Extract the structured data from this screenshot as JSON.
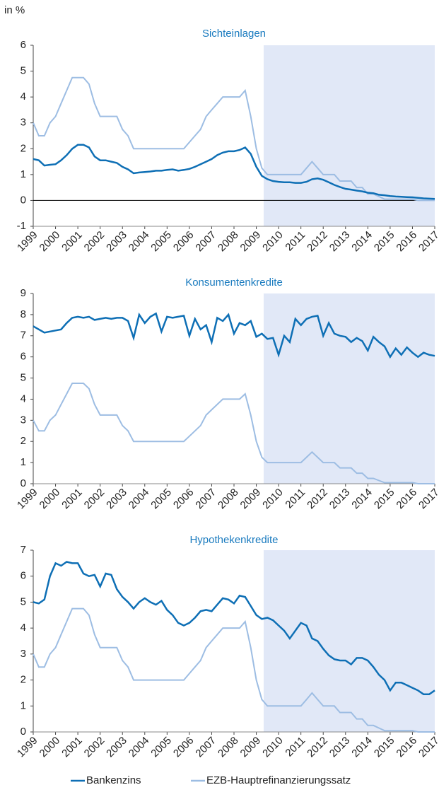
{
  "unit_label": "in %",
  "legend": [
    {
      "name": "Bankenzins",
      "color": "#0e6fb5"
    },
    {
      "name": "EZB-Hauptrefinanzierungssatz",
      "color": "#9dbde3"
    }
  ],
  "x": [
    1999,
    1999.25,
    1999.5,
    1999.75,
    2000,
    2000.25,
    2000.5,
    2000.75,
    2001,
    2001.25,
    2001.5,
    2001.75,
    2002,
    2002.25,
    2002.5,
    2002.75,
    2003,
    2003.25,
    2003.5,
    2003.75,
    2004,
    2004.25,
    2004.5,
    2004.75,
    2005,
    2005.25,
    2005.5,
    2005.75,
    2006,
    2006.25,
    2006.5,
    2006.75,
    2007,
    2007.25,
    2007.5,
    2007.75,
    2008,
    2008.25,
    2008.5,
    2008.75,
    2009,
    2009.25,
    2009.5,
    2009.75,
    2010,
    2010.25,
    2010.5,
    2010.75,
    2011,
    2011.25,
    2011.5,
    2011.75,
    2012,
    2012.25,
    2012.5,
    2012.75,
    2013,
    2013.25,
    2013.5,
    2013.75,
    2014,
    2014.25,
    2014.5,
    2014.75,
    2015,
    2015.25,
    2015.5,
    2015.75,
    2016,
    2016.25,
    2016.5,
    2016.75,
    2017
  ],
  "xlim": [
    1999,
    2017
  ],
  "xticks": [
    1999,
    2000,
    2001,
    2002,
    2003,
    2004,
    2005,
    2006,
    2007,
    2008,
    2009,
    2010,
    2011,
    2012,
    2013,
    2014,
    2015,
    2016,
    2017
  ],
  "chart_data": [
    {
      "type": "line",
      "title": "Sichteinlagen",
      "ylim": [
        -1,
        6
      ],
      "yticks": [
        -1,
        0,
        1,
        2,
        3,
        4,
        5,
        6
      ],
      "zero_line": true,
      "shade_from": 2009.33,
      "series": [
        {
          "values": [
            1.6,
            1.55,
            1.35,
            1.38,
            1.4,
            1.55,
            1.75,
            2.0,
            2.15,
            2.15,
            2.05,
            1.7,
            1.55,
            1.55,
            1.5,
            1.45,
            1.3,
            1.2,
            1.05,
            1.08,
            1.1,
            1.12,
            1.15,
            1.15,
            1.18,
            1.2,
            1.15,
            1.18,
            1.22,
            1.3,
            1.4,
            1.5,
            1.6,
            1.75,
            1.85,
            1.9,
            1.9,
            1.95,
            2.05,
            1.8,
            1.3,
            0.95,
            0.82,
            0.75,
            0.72,
            0.7,
            0.7,
            0.68,
            0.68,
            0.72,
            0.82,
            0.85,
            0.8,
            0.7,
            0.6,
            0.52,
            0.45,
            0.42,
            0.38,
            0.35,
            0.3,
            0.28,
            0.22,
            0.2,
            0.17,
            0.15,
            0.14,
            0.13,
            0.12,
            0.1,
            0.08,
            0.07,
            0.06
          ]
        },
        {
          "values": [
            3.0,
            2.5,
            2.5,
            3.0,
            3.25,
            3.75,
            4.25,
            4.75,
            4.75,
            4.75,
            4.5,
            3.75,
            3.25,
            3.25,
            3.25,
            3.25,
            2.75,
            2.5,
            2.0,
            2.0,
            2,
            2,
            2,
            2,
            2,
            2,
            2,
            2,
            2.25,
            2.5,
            2.75,
            3.25,
            3.5,
            3.75,
            4.0,
            4.0,
            4.0,
            4.0,
            4.25,
            3.25,
            2.0,
            1.25,
            1.0,
            1.0,
            1,
            1,
            1,
            1,
            1.0,
            1.25,
            1.5,
            1.25,
            1.0,
            1.0,
            1.0,
            0.75,
            0.75,
            0.75,
            0.5,
            0.5,
            0.25,
            0.25,
            0.15,
            0.05,
            0.05,
            0.05,
            0.05,
            0.05,
            0.05,
            0.0,
            0.0,
            0.0,
            0.0
          ]
        }
      ]
    },
    {
      "type": "line",
      "title": "Konsumentenkredite",
      "ylim": [
        0,
        9
      ],
      "yticks": [
        0,
        1,
        2,
        3,
        4,
        5,
        6,
        7,
        8,
        9
      ],
      "zero_line": false,
      "shade_from": 2009.33,
      "series": [
        {
          "values": [
            7.45,
            7.3,
            7.15,
            7.2,
            7.25,
            7.3,
            7.6,
            7.85,
            7.9,
            7.85,
            7.9,
            7.75,
            7.8,
            7.85,
            7.8,
            7.85,
            7.85,
            7.7,
            6.9,
            8.0,
            7.6,
            7.9,
            8.05,
            7.2,
            7.9,
            7.85,
            7.9,
            7.95,
            7.0,
            7.8,
            7.3,
            7.5,
            6.7,
            7.85,
            7.7,
            8.0,
            7.1,
            7.6,
            7.5,
            7.7,
            6.95,
            7.1,
            6.85,
            6.9,
            6.1,
            7.0,
            6.7,
            7.8,
            7.5,
            7.8,
            7.9,
            7.95,
            7.0,
            7.6,
            7.1,
            7.0,
            6.95,
            6.7,
            6.9,
            6.75,
            6.3,
            6.95,
            6.7,
            6.5,
            6.0,
            6.4,
            6.1,
            6.45,
            6.2,
            6.0,
            6.2,
            6.1,
            6.05
          ]
        },
        {
          "values": [
            3.0,
            2.5,
            2.5,
            3.0,
            3.25,
            3.75,
            4.25,
            4.75,
            4.75,
            4.75,
            4.5,
            3.75,
            3.25,
            3.25,
            3.25,
            3.25,
            2.75,
            2.5,
            2.0,
            2.0,
            2,
            2,
            2,
            2,
            2,
            2,
            2,
            2,
            2.25,
            2.5,
            2.75,
            3.25,
            3.5,
            3.75,
            4.0,
            4.0,
            4.0,
            4.0,
            4.25,
            3.25,
            2.0,
            1.25,
            1.0,
            1.0,
            1,
            1,
            1,
            1,
            1.0,
            1.25,
            1.5,
            1.25,
            1.0,
            1.0,
            1.0,
            0.75,
            0.75,
            0.75,
            0.5,
            0.5,
            0.25,
            0.25,
            0.15,
            0.05,
            0.05,
            0.05,
            0.05,
            0.05,
            0.05,
            0.0,
            0.0,
            0.0,
            0.0
          ]
        }
      ]
    },
    {
      "type": "line",
      "title": "Hypothekenkredite",
      "ylim": [
        0,
        7
      ],
      "yticks": [
        0,
        1,
        2,
        3,
        4,
        5,
        6,
        7
      ],
      "zero_line": false,
      "shade_from": 2009.33,
      "series": [
        {
          "values": [
            5.0,
            4.95,
            5.1,
            6.0,
            6.5,
            6.4,
            6.55,
            6.5,
            6.5,
            6.1,
            6.0,
            6.05,
            5.6,
            6.1,
            6.05,
            5.5,
            5.2,
            5.0,
            4.75,
            5.0,
            5.15,
            5.0,
            4.9,
            5.05,
            4.7,
            4.5,
            4.2,
            4.1,
            4.2,
            4.4,
            4.65,
            4.7,
            4.65,
            4.9,
            5.15,
            5.1,
            4.95,
            5.25,
            5.2,
            4.85,
            4.5,
            4.35,
            4.4,
            4.3,
            4.1,
            3.9,
            3.6,
            3.9,
            4.2,
            4.1,
            3.6,
            3.5,
            3.2,
            2.95,
            2.8,
            2.75,
            2.75,
            2.6,
            2.85,
            2.85,
            2.75,
            2.5,
            2.2,
            2.0,
            1.6,
            1.9,
            1.9,
            1.8,
            1.7,
            1.6,
            1.45,
            1.45,
            1.6
          ]
        },
        {
          "values": [
            3.0,
            2.5,
            2.5,
            3.0,
            3.25,
            3.75,
            4.25,
            4.75,
            4.75,
            4.75,
            4.5,
            3.75,
            3.25,
            3.25,
            3.25,
            3.25,
            2.75,
            2.5,
            2.0,
            2.0,
            2,
            2,
            2,
            2,
            2,
            2,
            2,
            2,
            2.25,
            2.5,
            2.75,
            3.25,
            3.5,
            3.75,
            4.0,
            4.0,
            4.0,
            4.0,
            4.25,
            3.25,
            2.0,
            1.25,
            1.0,
            1.0,
            1,
            1,
            1,
            1,
            1.0,
            1.25,
            1.5,
            1.25,
            1.0,
            1.0,
            1.0,
            0.75,
            0.75,
            0.75,
            0.5,
            0.5,
            0.25,
            0.25,
            0.15,
            0.05,
            0.05,
            0.05,
            0.05,
            0.05,
            0.05,
            0.0,
            0.0,
            0.0,
            0.0
          ]
        }
      ]
    }
  ]
}
